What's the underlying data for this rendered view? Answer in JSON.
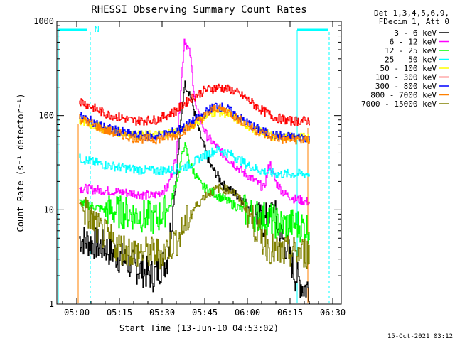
{
  "chart_data": {
    "type": "line",
    "title": "RHESSI Observing Summary Count Rates",
    "xlabel": "Start Time (13-Jun-10 04:53:02)",
    "ylabel": "Count Rate (s⁻¹ detector⁻¹)",
    "y_scale": "log",
    "ylim": [
      1,
      1000
    ],
    "xlim": [
      "04:53",
      "06:33"
    ],
    "x_ticks": [
      "05:00",
      "05:15",
      "05:30",
      "05:45",
      "06:00",
      "06:15",
      "06:30"
    ],
    "y_ticks": [
      "1",
      "10",
      "100",
      "1000"
    ],
    "grid": false,
    "legend_position": "right",
    "legend_header": [
      "Det 1,3,4,5,6,9,",
      "FDecim 1, Att 0"
    ],
    "series": [
      {
        "name": "3 - 6 keV",
        "color": "#000000",
        "x": [
          "05:01",
          "05:10",
          "05:20",
          "05:27",
          "05:32",
          "05:35",
          "05:38",
          "05:40",
          "05:43",
          "05:47",
          "05:52",
          "05:57",
          "06:02",
          "06:06",
          "06:09",
          "06:11",
          "06:14",
          "06:17",
          "06:20",
          "06:22"
        ],
        "y": [
          5,
          4,
          2.5,
          2,
          3,
          20,
          220,
          170,
          70,
          30,
          18,
          14,
          10,
          7,
          12,
          6,
          4,
          2,
          1.5,
          1.5
        ]
      },
      {
        "name": "6 - 12 keV",
        "color": "#ff00ff",
        "x": [
          "05:01",
          "05:10",
          "05:20",
          "05:27",
          "05:32",
          "05:35",
          "05:37",
          "05:38",
          "05:40",
          "05:42",
          "05:46",
          "05:52",
          "05:58",
          "06:03",
          "06:06",
          "06:08",
          "06:10",
          "06:13",
          "06:17",
          "06:22"
        ],
        "y": [
          17,
          16,
          15,
          14,
          17,
          35,
          250,
          650,
          450,
          120,
          60,
          38,
          26,
          20,
          17,
          32,
          20,
          15,
          13,
          12
        ]
      },
      {
        "name": "12 - 25 keV",
        "color": "#00ff00",
        "x": [
          "05:01",
          "05:10",
          "05:20",
          "05:28",
          "05:33",
          "05:36",
          "05:38",
          "05:40",
          "05:44",
          "05:50",
          "05:56",
          "06:02",
          "06:08",
          "06:12",
          "06:17",
          "06:22"
        ],
        "y": [
          12,
          10,
          9,
          8,
          11,
          25,
          50,
          30,
          18,
          14,
          11,
          9,
          8,
          7,
          7,
          6.5
        ]
      },
      {
        "name": "25 - 50 keV",
        "color": "#00ffff",
        "x": [
          "05:01",
          "05:10",
          "05:20",
          "05:28",
          "05:35",
          "05:40",
          "05:45",
          "05:50",
          "05:55",
          "06:00",
          "06:05",
          "06:10",
          "06:15",
          "06:22"
        ],
        "y": [
          35,
          30,
          27,
          26,
          27,
          30,
          38,
          44,
          38,
          30,
          26,
          24,
          24,
          24
        ]
      },
      {
        "name": "50 - 100 keV",
        "color": "#ffff00",
        "x": [
          "05:01",
          "05:10",
          "05:20",
          "05:28",
          "05:35",
          "05:40",
          "05:45",
          "05:49",
          "05:53",
          "05:58",
          "06:03",
          "06:08",
          "06:13",
          "06:22"
        ],
        "y": [
          88,
          72,
          62,
          62,
          68,
          78,
          95,
          112,
          105,
          85,
          70,
          62,
          60,
          58
        ]
      },
      {
        "name": "100 - 300 keV",
        "color": "#ff0000",
        "x": [
          "05:01",
          "05:10",
          "05:20",
          "05:28",
          "05:35",
          "05:40",
          "05:45",
          "05:50",
          "05:55",
          "06:00",
          "06:05",
          "06:10",
          "06:15",
          "06:22"
        ],
        "y": [
          145,
          105,
          88,
          90,
          112,
          150,
          185,
          200,
          185,
          150,
          115,
          95,
          88,
          88
        ]
      },
      {
        "name": "300 - 800 keV",
        "color": "#0000ff",
        "x": [
          "05:01",
          "05:10",
          "05:20",
          "05:28",
          "05:35",
          "05:40",
          "05:45",
          "05:49",
          "05:53",
          "05:58",
          "06:03",
          "06:08",
          "06:13",
          "06:22"
        ],
        "y": [
          100,
          75,
          62,
          60,
          68,
          82,
          105,
          128,
          118,
          92,
          74,
          63,
          60,
          58
        ]
      },
      {
        "name": "800 - 7000 keV",
        "color": "#ff8000",
        "x": [
          "05:01",
          "05:10",
          "05:20",
          "05:28",
          "05:35",
          "05:40",
          "05:45",
          "05:49",
          "05:53",
          "05:58",
          "06:03",
          "06:08",
          "06:13",
          "06:22"
        ],
        "y": [
          95,
          70,
          58,
          56,
          62,
          76,
          98,
          122,
          112,
          88,
          70,
          60,
          56,
          55
        ]
      },
      {
        "name": "7000 - 15000 keV",
        "color": "#808000",
        "x": [
          "05:01",
          "05:08",
          "05:15",
          "05:22",
          "05:30",
          "05:36",
          "05:40",
          "05:45",
          "05:50",
          "05:55",
          "06:00",
          "06:05",
          "06:10",
          "06:15",
          "06:22"
        ],
        "y": [
          12,
          6,
          4,
          3.5,
          3.5,
          5,
          9,
          14,
          17,
          16,
          10,
          5,
          3.5,
          3.5,
          3.5
        ]
      }
    ],
    "annotations": [
      {
        "text": "N",
        "x": "05:05",
        "y": 800,
        "color": "#00ffff"
      }
    ],
    "footer_timestamp": "15-Oct-2021 03:12"
  }
}
